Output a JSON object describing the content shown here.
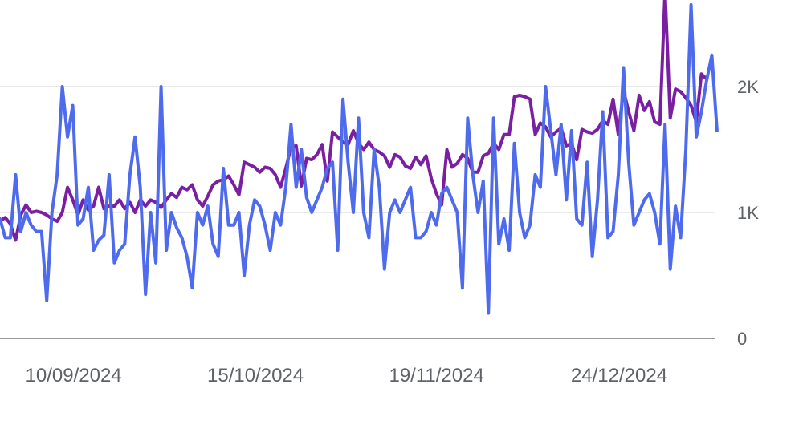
{
  "chart_data": {
    "type": "line",
    "title": "",
    "xlabel": "",
    "ylabel": "",
    "ylim": [
      0,
      2500
    ],
    "yticks": [
      {
        "value": 0,
        "label": "0"
      },
      {
        "value": 1000,
        "label": "1K"
      },
      {
        "value": 2000,
        "label": "2K"
      }
    ],
    "xtick_labels": [
      {
        "label": "10/09/2024",
        "index": 16
      },
      {
        "label": "15/10/2024",
        "index": 51
      },
      {
        "label": "19/11/2024",
        "index": 86
      },
      {
        "label": "24/12/2024",
        "index": 121
      }
    ],
    "grid": true,
    "legend": "none",
    "series": [
      {
        "color": "#7b1fa2",
        "values": [
          930,
          960,
          910,
          780,
          980,
          1060,
          1000,
          1010,
          1000,
          980,
          950,
          930,
          1000,
          1200,
          1100,
          980,
          1100,
          1020,
          1050,
          1200,
          1030,
          1050,
          1050,
          1100,
          1030,
          1080,
          1000,
          1100,
          1050,
          1100,
          1080,
          1040,
          1100,
          1150,
          1120,
          1200,
          1180,
          1220,
          1100,
          1050,
          1130,
          1220,
          1250,
          1260,
          1290,
          1220,
          1140,
          1400,
          1380,
          1360,
          1320,
          1360,
          1350,
          1300,
          1200,
          1350,
          1520,
          1530,
          1210,
          1430,
          1420,
          1460,
          1540,
          1250,
          1640,
          1600,
          1560,
          1540,
          1650,
          1550,
          1500,
          1560,
          1500,
          1480,
          1450,
          1360,
          1460,
          1440,
          1370,
          1350,
          1440,
          1380,
          1450,
          1270,
          1150,
          1060,
          1500,
          1360,
          1390,
          1460,
          1430,
          1320,
          1320,
          1450,
          1470,
          1550,
          1500,
          1620,
          1620,
          1920,
          1930,
          1920,
          1900,
          1620,
          1710,
          1680,
          1600,
          1640,
          1670,
          1530,
          1550,
          1420,
          1660,
          1640,
          1630,
          1660,
          1730,
          1700,
          1900,
          1620,
          1970,
          1800,
          1650,
          1930,
          1810,
          1880,
          1720,
          1700,
          2760,
          1750,
          1980,
          1960,
          1910,
          1850,
          1720,
          2100,
          2060
        ]
      },
      {
        "color": "#4f6bed",
        "values": [
          950,
          800,
          800,
          1300,
          850,
          1000,
          900,
          850,
          850,
          300,
          1000,
          1300,
          2000,
          1600,
          1850,
          900,
          950,
          1200,
          700,
          780,
          820,
          1300,
          600,
          700,
          750,
          1300,
          1600,
          1200,
          350,
          1000,
          600,
          2000,
          700,
          1000,
          880,
          800,
          650,
          400,
          1000,
          900,
          1050,
          750,
          650,
          1350,
          900,
          900,
          1000,
          500,
          900,
          1100,
          1050,
          900,
          700,
          1000,
          900,
          1200,
          1700,
          1200,
          1500,
          1120,
          1000,
          1100,
          1200,
          1350,
          1400,
          700,
          1900,
          1400,
          1000,
          1750,
          1000,
          800,
          1500,
          1200,
          550,
          1000,
          1100,
          1000,
          1100,
          1200,
          800,
          800,
          850,
          1000,
          900,
          1150,
          1200,
          1100,
          1000,
          400,
          1750,
          1300,
          1000,
          1250,
          200,
          1750,
          750,
          950,
          700,
          1550,
          1000,
          800,
          900,
          1300,
          1200,
          2000,
          1650,
          1300,
          1700,
          1100,
          1650,
          950,
          900,
          1400,
          650,
          1100,
          1800,
          800,
          850,
          1300,
          2150,
          1400,
          900,
          1000,
          1100,
          1150,
          1000,
          750,
          1700,
          550,
          1050,
          800,
          1500,
          2650,
          1600,
          1800,
          2050,
          2250,
          1650
        ]
      }
    ]
  }
}
